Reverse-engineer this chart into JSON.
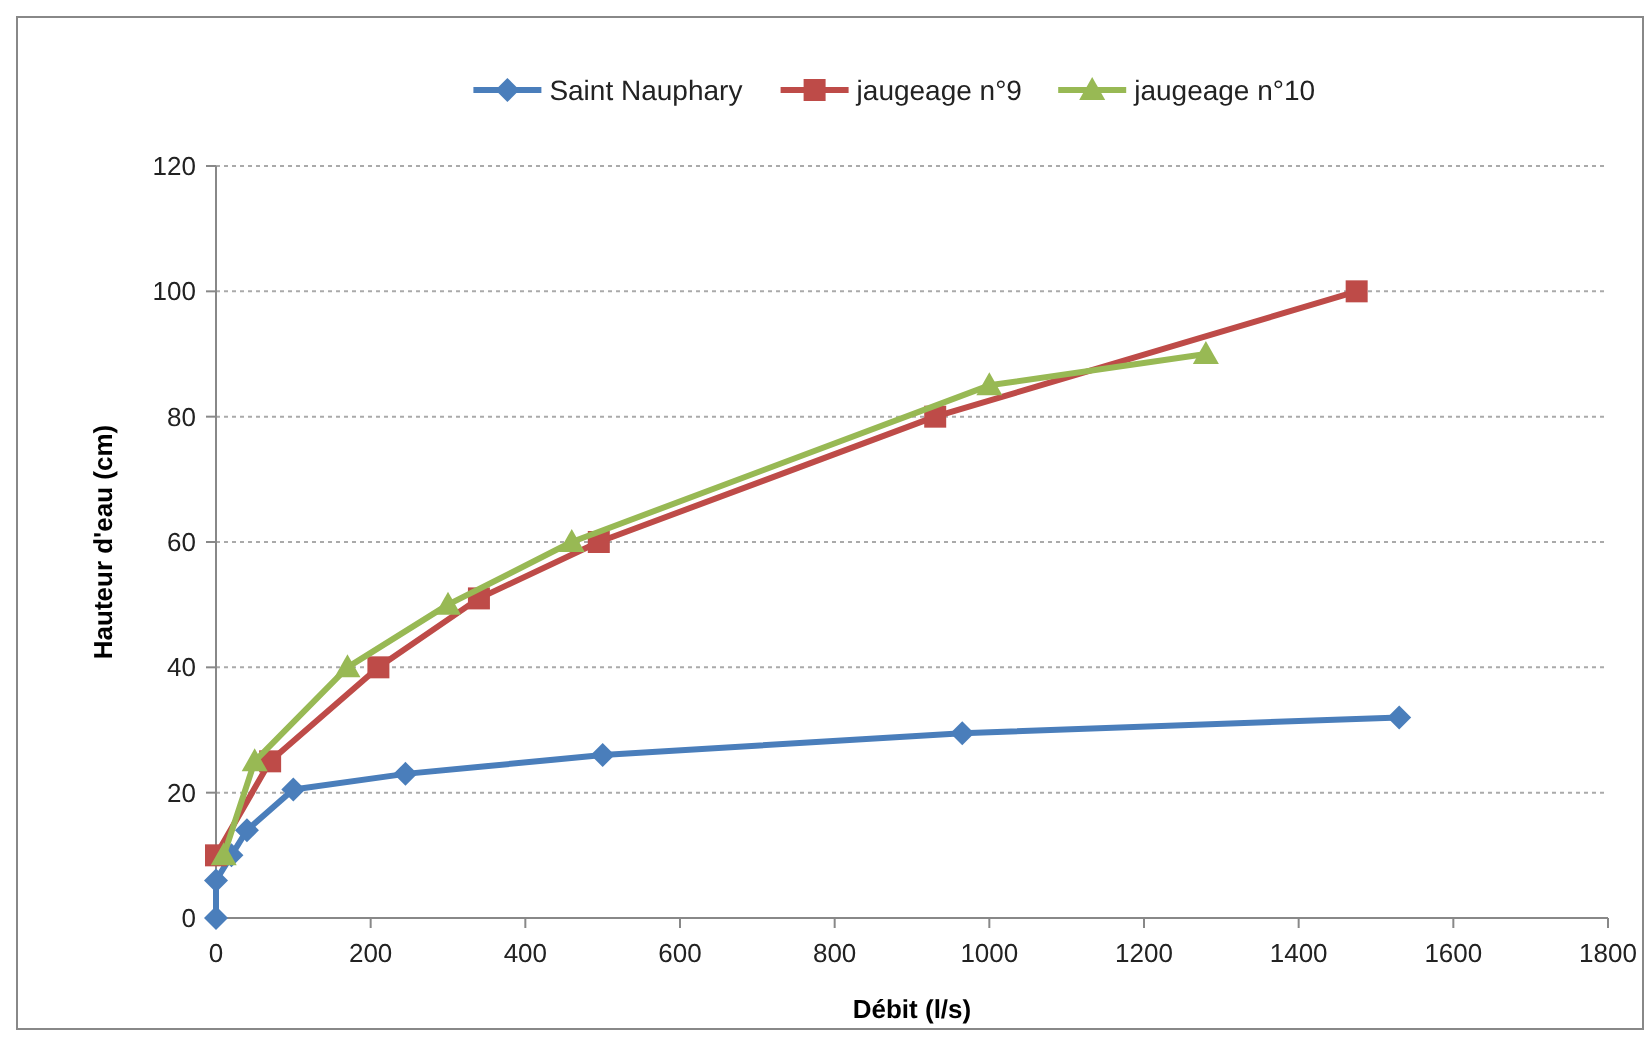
{
  "chart_data": {
    "type": "line",
    "xlabel": "Débit (l/s)",
    "ylabel": "Hauteur d'eau (cm)",
    "xlim": [
      0,
      1800
    ],
    "xticks": [
      0,
      200,
      400,
      600,
      800,
      1000,
      1200,
      1400,
      1600,
      1800
    ],
    "ylim": [
      0,
      120
    ],
    "yticks": [
      0,
      20,
      40,
      60,
      80,
      100,
      120
    ],
    "grid": "y",
    "legend": "top",
    "line_style": "solid",
    "series": [
      {
        "name": "Saint Nauphary",
        "color": "#4a7ebb",
        "marker": "diamond",
        "x": [
          0,
          0,
          20,
          40,
          100,
          245,
          500,
          965,
          1530
        ],
        "values": [
          0,
          6,
          10,
          14,
          20.5,
          23,
          26,
          29.5,
          32
        ]
      },
      {
        "name": "jaugeage n°9",
        "color": "#be4b48",
        "marker": "square",
        "x": [
          0,
          70,
          210,
          340,
          495,
          930,
          1475
        ],
        "values": [
          10,
          25,
          40,
          51,
          60,
          80,
          100
        ]
      },
      {
        "name": "jaugeage n°10",
        "color": "#98b954",
        "marker": "triangle",
        "x": [
          10,
          50,
          170,
          300,
          460,
          1000,
          1280
        ],
        "values": [
          10,
          25,
          40,
          50,
          60,
          85,
          90
        ]
      }
    ]
  }
}
